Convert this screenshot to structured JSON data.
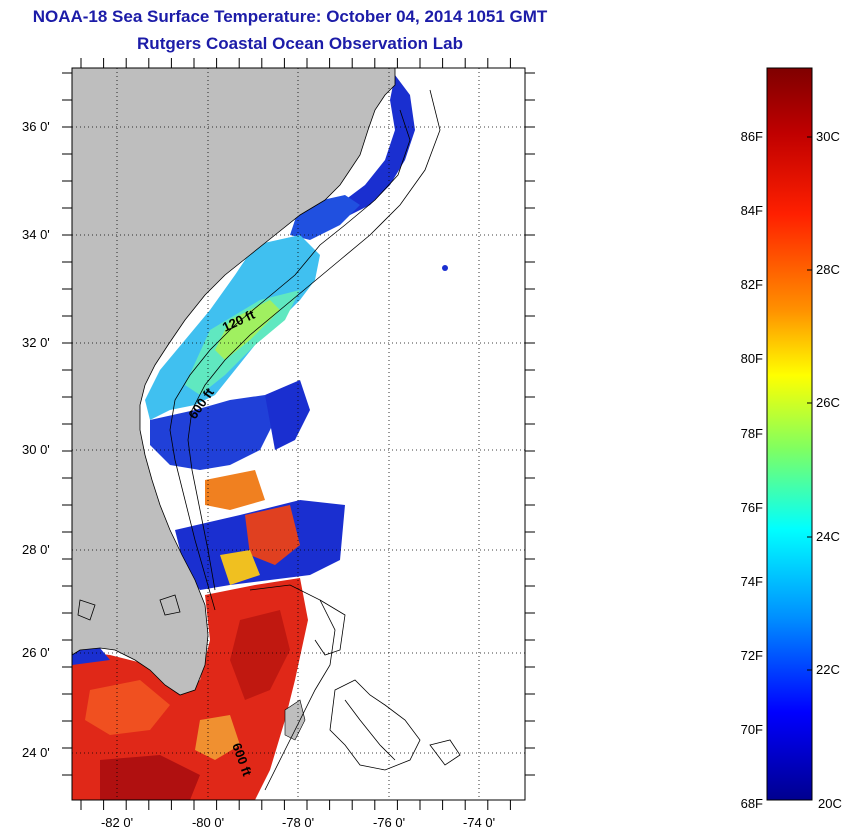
{
  "header": {
    "title": "NOAA-18 Sea Surface Temperature:  October 04, 2014 1051 GMT",
    "subtitle": "Rutgers Coastal Ocean Observation Lab"
  },
  "map": {
    "lat_labels": [
      "36 0'",
      "34 0'",
      "32 0'",
      "30 0'",
      "28 0'",
      "26 0'",
      "24 0'"
    ],
    "lon_labels": [
      "-82 0'",
      "-80 0'",
      "-78 0'",
      "-76 0'",
      "-74 0'"
    ],
    "contour_labels": [
      "120 ft",
      "600 ft",
      "600 ft"
    ],
    "land_color": "#bebebe",
    "no_data_color": "#ffffff"
  },
  "colorbar": {
    "fahrenheit_labels": [
      "86F",
      "84F",
      "82F",
      "80F",
      "78F",
      "76F",
      "74F",
      "72F",
      "70F",
      "68F"
    ],
    "celsius_labels": [
      "30C",
      "28C",
      "26C",
      "24C",
      "22C",
      "20C"
    ],
    "colors": [
      "#7f0000",
      "#ff0000",
      "#ff8000",
      "#ffff00",
      "#80ff80",
      "#00ffff",
      "#0080ff",
      "#0000ff",
      "#00008f"
    ]
  }
}
